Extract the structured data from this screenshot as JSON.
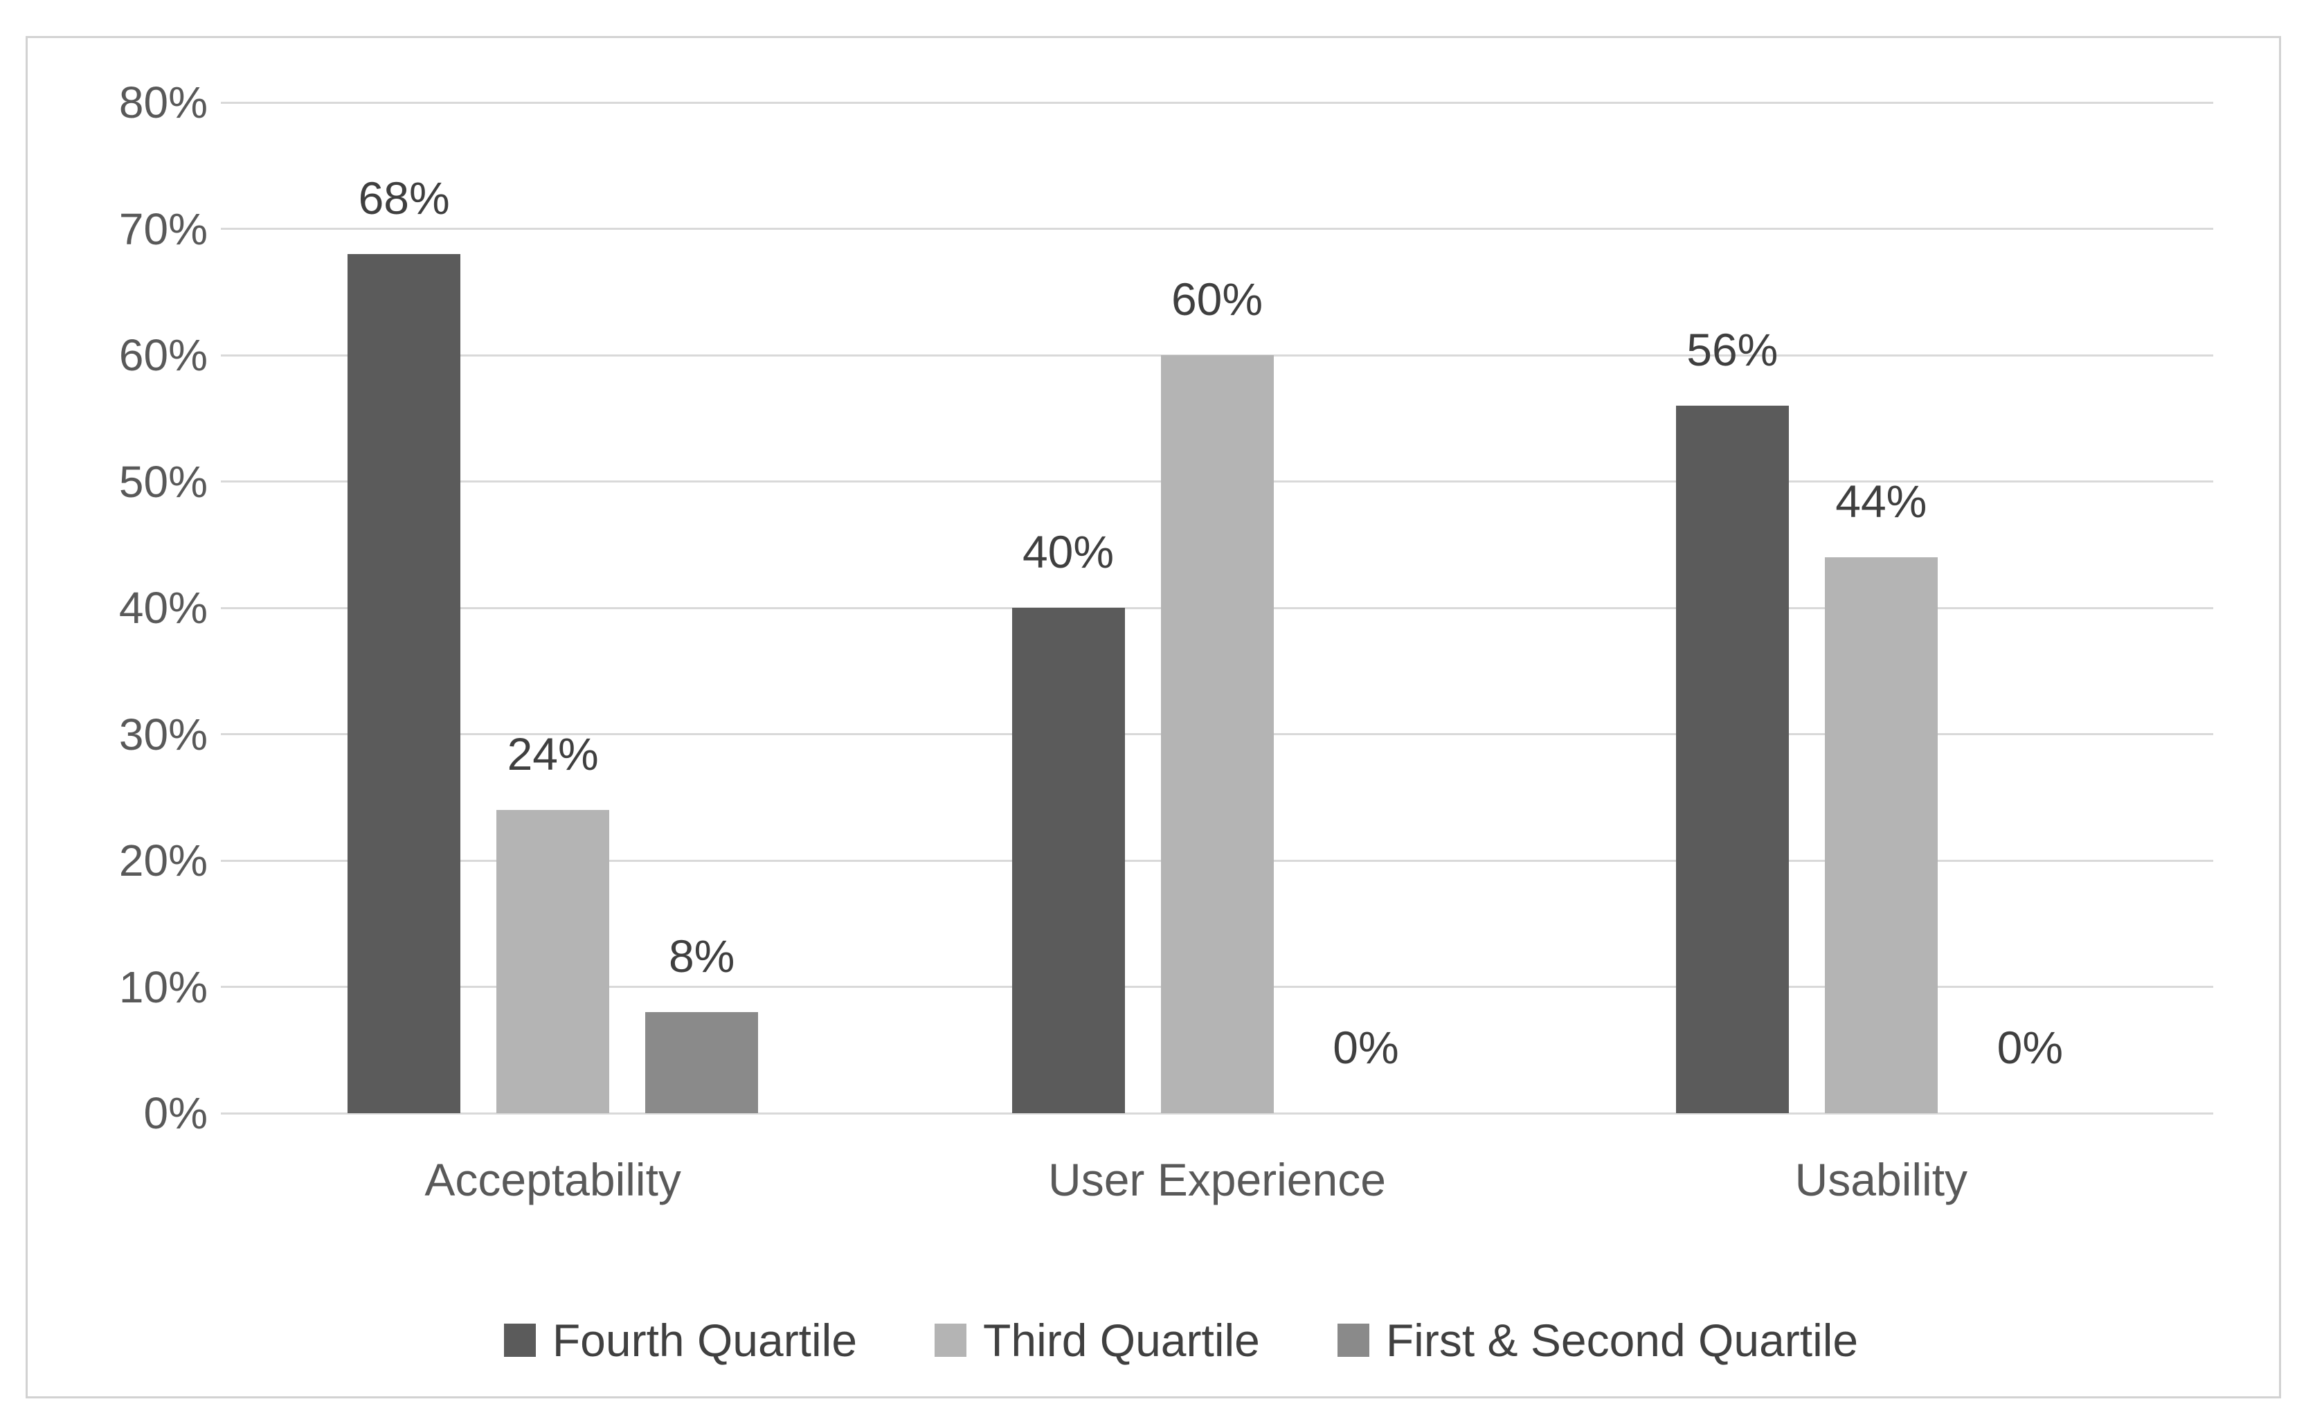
{
  "chart_data": {
    "type": "bar",
    "categories": [
      "Acceptability",
      "User Experience",
      "Usability"
    ],
    "series": [
      {
        "name": "Fourth Quartile",
        "color": "#5b5b5b",
        "values": [
          68,
          40,
          56
        ]
      },
      {
        "name": "Third Quartile",
        "color": "#b4b4b4",
        "values": [
          24,
          60,
          44
        ]
      },
      {
        "name": "First & Second Quartile",
        "color": "#8a8a8a",
        "values": [
          8,
          0,
          0
        ]
      }
    ],
    "data_labels": [
      [
        "68%",
        "40%",
        "56%"
      ],
      [
        "24%",
        "60%",
        "44%"
      ],
      [
        "8%",
        "0%",
        "0%"
      ]
    ],
    "y_ticks": [
      "80%",
      "70%",
      "60%",
      "50%",
      "40%",
      "30%",
      "20%",
      "10%",
      "0%"
    ],
    "ylim": [
      0,
      80
    ],
    "y_step": 10,
    "grid": true,
    "legend_position": "bottom",
    "title": "",
    "xlabel": "",
    "ylabel": ""
  },
  "colors": {
    "gridline": "#d9d9d9",
    "frame_border": "#d2d2d2",
    "axis_text": "#595959",
    "label_text": "#3f3f3f",
    "background": "#ffffff"
  }
}
